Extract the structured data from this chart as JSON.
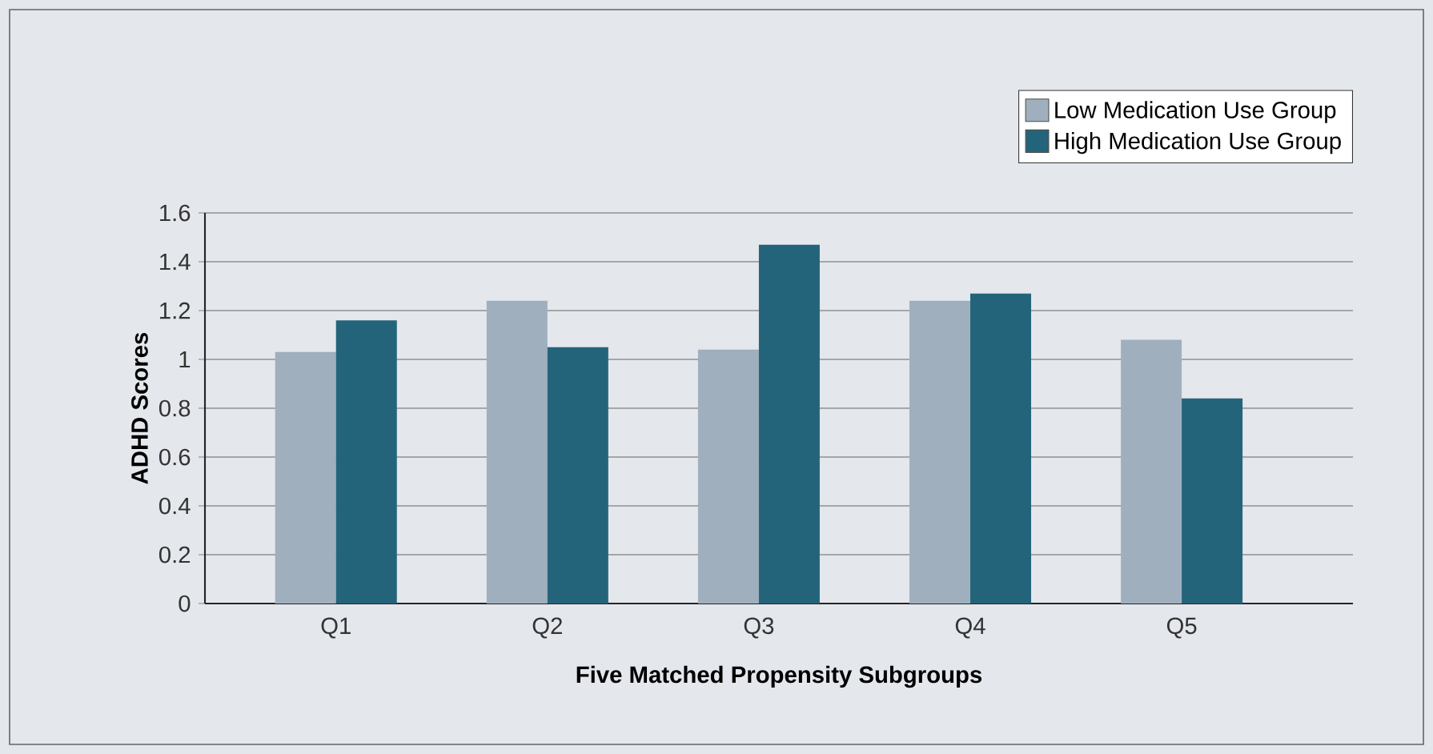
{
  "chart_data": {
    "type": "bar",
    "xlabel": "Five Matched Propensity Subgroups",
    "ylabel": "ADHD Scores",
    "categories": [
      "Q1",
      "Q2",
      "Q3",
      "Q4",
      "Q5"
    ],
    "series": [
      {
        "name": "Low Medication Use Group",
        "color": "#9fafbe",
        "values": [
          1.03,
          1.24,
          1.04,
          1.24,
          1.08
        ]
      },
      {
        "name": "High Medication Use Group",
        "color": "#24647b",
        "values": [
          1.16,
          1.05,
          1.47,
          1.27,
          0.84
        ]
      }
    ],
    "ylim": [
      0,
      1.6
    ],
    "yticks": [
      0,
      0.2,
      0.4,
      0.6,
      0.8,
      1,
      1.2,
      1.4,
      1.6
    ],
    "grid": "y",
    "legend": "top right"
  }
}
